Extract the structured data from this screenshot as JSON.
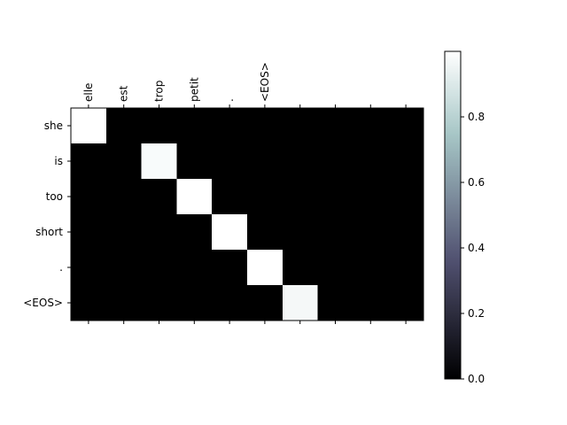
{
  "chart_data": {
    "type": "heatmap",
    "title": "",
    "xlabel": "",
    "ylabel": "",
    "x_tick_labels": [
      "elle",
      "est",
      "trop",
      "petit",
      ".",
      "<EOS>",
      "",
      "",
      "",
      ""
    ],
    "y_tick_labels": [
      "she",
      "is",
      "too",
      "short",
      ".",
      "<EOS>"
    ],
    "values": [
      [
        1.0,
        0.0,
        0.0,
        0.0,
        0.0,
        0.0,
        0.0,
        0.0,
        0.0,
        0.0
      ],
      [
        0.0,
        0.0,
        0.98,
        0.0,
        0.0,
        0.0,
        0.0,
        0.0,
        0.0,
        0.0
      ],
      [
        0.0,
        0.0,
        0.0,
        1.0,
        0.0,
        0.0,
        0.0,
        0.0,
        0.0,
        0.0
      ],
      [
        0.0,
        0.0,
        0.0,
        0.0,
        1.0,
        0.0,
        0.0,
        0.0,
        0.0,
        0.0
      ],
      [
        0.0,
        0.0,
        0.0,
        0.0,
        0.0,
        1.0,
        0.0,
        0.0,
        0.0,
        0.0
      ],
      [
        0.0,
        0.0,
        0.0,
        0.0,
        0.0,
        0.0,
        0.97,
        0.0,
        0.0,
        0.0
      ]
    ],
    "colormap": "bone",
    "colorbar": {
      "range": [
        0.0,
        1.0
      ],
      "ticks": [
        0.0,
        0.2,
        0.4,
        0.6,
        0.8
      ],
      "tick_labels": [
        "0.0",
        "0.2",
        "0.4",
        "0.6",
        "0.8"
      ],
      "placement": "right"
    }
  }
}
